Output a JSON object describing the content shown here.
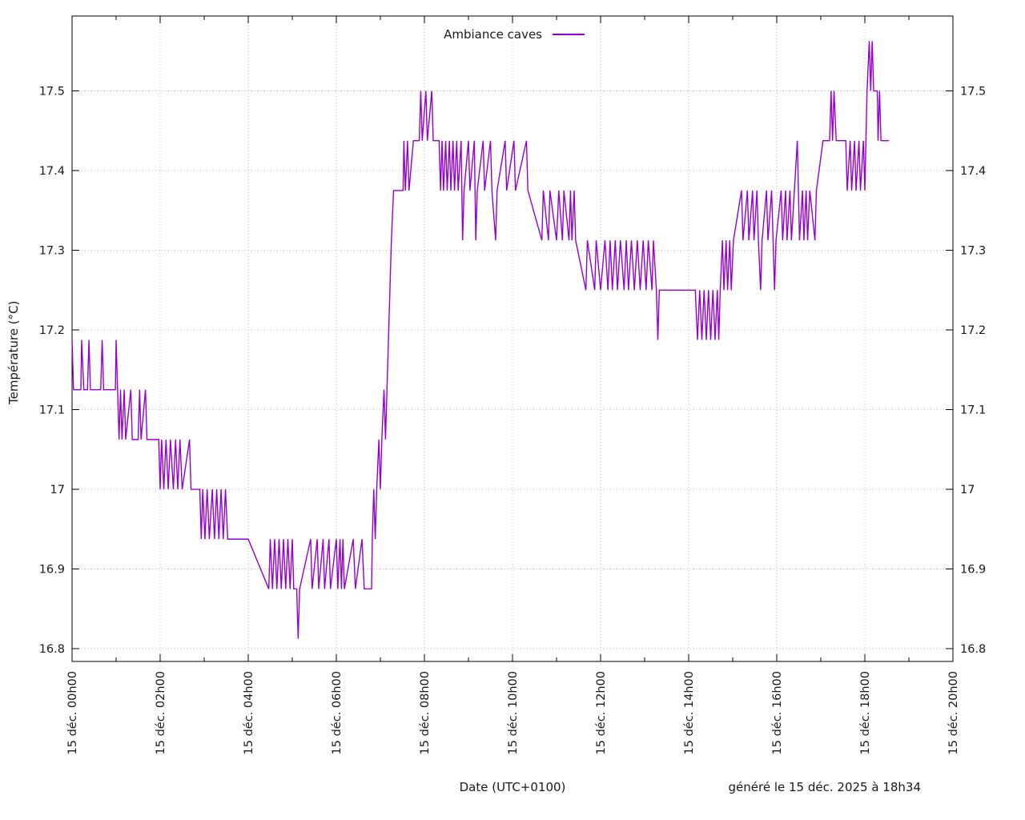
{
  "chart_data": {
    "type": "line",
    "title": "",
    "xlabel": "Date (UTC+0100)",
    "ylabel": "Température (°C)",
    "footer_note": "généré le 15 déc. 2025 à 18h34",
    "legend_position": "top-center",
    "grid": "dotted",
    "background_color": "#ffffff",
    "border_color": "#000000",
    "grid_color": "#b8b8b8",
    "x_range_hours": [
      0,
      20
    ],
    "y_range": [
      16.784,
      17.594
    ],
    "x_major_ticks": [
      {
        "hour": 0,
        "label": "15 déc. 00h00"
      },
      {
        "hour": 2,
        "label": "15 déc. 02h00"
      },
      {
        "hour": 4,
        "label": "15 déc. 04h00"
      },
      {
        "hour": 6,
        "label": "15 déc. 06h00"
      },
      {
        "hour": 8,
        "label": "15 déc. 08h00"
      },
      {
        "hour": 10,
        "label": "15 déc. 10h00"
      },
      {
        "hour": 12,
        "label": "15 déc. 12h00"
      },
      {
        "hour": 14,
        "label": "15 déc. 14h00"
      },
      {
        "hour": 16,
        "label": "15 déc. 16h00"
      },
      {
        "hour": 18,
        "label": "15 déc. 18h00"
      },
      {
        "hour": 20,
        "label": "15 déc. 20h00"
      }
    ],
    "x_minor_tick_every_hours": 1,
    "y_ticks": [
      {
        "value": 16.8,
        "label": "16.8"
      },
      {
        "value": 16.9,
        "label": "16.9"
      },
      {
        "value": 17.0,
        "label": "17"
      },
      {
        "value": 17.1,
        "label": "17.1"
      },
      {
        "value": 17.2,
        "label": "17.2"
      },
      {
        "value": 17.3,
        "label": "17.3"
      },
      {
        "value": 17.4,
        "label": "17.4"
      },
      {
        "value": 17.5,
        "label": "17.5"
      }
    ],
    "series": [
      {
        "name": "Ambiance caves",
        "color": "#9400d3",
        "points_minutes_celsius": [
          [
            0,
            17.1875
          ],
          [
            2,
            17.125
          ],
          [
            12,
            17.125
          ],
          [
            13,
            17.1875
          ],
          [
            16,
            17.125
          ],
          [
            21,
            17.125
          ],
          [
            23,
            17.1875
          ],
          [
            25,
            17.125
          ],
          [
            39,
            17.125
          ],
          [
            41,
            17.1875
          ],
          [
            43,
            17.125
          ],
          [
            59,
            17.125
          ],
          [
            60,
            17.1875
          ],
          [
            62,
            17.125
          ],
          [
            64,
            17.0625
          ],
          [
            66,
            17.125
          ],
          [
            68,
            17.0625
          ],
          [
            71,
            17.125
          ],
          [
            73,
            17.0625
          ],
          [
            80,
            17.125
          ],
          [
            82,
            17.0625
          ],
          [
            90,
            17.0625
          ],
          [
            92,
            17.125
          ],
          [
            94,
            17.0625
          ],
          [
            100,
            17.125
          ],
          [
            102,
            17.0625
          ],
          [
            118,
            17.0625
          ],
          [
            120,
            17.0
          ],
          [
            122,
            17.0625
          ],
          [
            125,
            17.0
          ],
          [
            128,
            17.0625
          ],
          [
            131,
            17.0
          ],
          [
            134,
            17.0625
          ],
          [
            138,
            17.0
          ],
          [
            141,
            17.0625
          ],
          [
            144,
            17.0
          ],
          [
            147,
            17.0625
          ],
          [
            150,
            17.0
          ],
          [
            160,
            17.0625
          ],
          [
            162,
            17.0
          ],
          [
            174,
            17.0
          ],
          [
            176,
            16.9375
          ],
          [
            178,
            17.0
          ],
          [
            181,
            16.9375
          ],
          [
            184,
            17.0
          ],
          [
            187,
            16.9375
          ],
          [
            191,
            17.0
          ],
          [
            194,
            16.9375
          ],
          [
            197,
            17.0
          ],
          [
            200,
            16.9375
          ],
          [
            203,
            17.0
          ],
          [
            206,
            16.9375
          ],
          [
            209,
            17.0
          ],
          [
            212,
            16.9375
          ],
          [
            234,
            16.9375
          ],
          [
            240,
            16.9375
          ],
          [
            268,
            16.875
          ],
          [
            270,
            16.9375
          ],
          [
            273,
            16.875
          ],
          [
            276,
            16.9375
          ],
          [
            279,
            16.875
          ],
          [
            282,
            16.9375
          ],
          [
            285,
            16.875
          ],
          [
            288,
            16.9375
          ],
          [
            291,
            16.875
          ],
          [
            294,
            16.9375
          ],
          [
            297,
            16.875
          ],
          [
            300,
            16.9375
          ],
          [
            302,
            16.875
          ],
          [
            306,
            16.875
          ],
          [
            308,
            16.8125
          ],
          [
            310,
            16.875
          ],
          [
            325,
            16.9375
          ],
          [
            327,
            16.875
          ],
          [
            334,
            16.9375
          ],
          [
            336,
            16.875
          ],
          [
            342,
            16.9375
          ],
          [
            344,
            16.875
          ],
          [
            350,
            16.9375
          ],
          [
            352,
            16.875
          ],
          [
            360,
            16.9375
          ],
          [
            362,
            16.875
          ],
          [
            365,
            16.9375
          ],
          [
            367,
            16.875
          ],
          [
            369,
            16.9375
          ],
          [
            371,
            16.875
          ],
          [
            383,
            16.9375
          ],
          [
            386,
            16.875
          ],
          [
            395,
            16.9375
          ],
          [
            398,
            16.875
          ],
          [
            408,
            16.875
          ],
          [
            409,
            16.9375
          ],
          [
            411,
            17.0
          ],
          [
            413,
            16.9375
          ],
          [
            415,
            17.0
          ],
          [
            418,
            17.0625
          ],
          [
            420,
            17.0
          ],
          [
            422,
            17.0625
          ],
          [
            425,
            17.125
          ],
          [
            427,
            17.0625
          ],
          [
            429,
            17.125
          ],
          [
            431,
            17.1875
          ],
          [
            433,
            17.25
          ],
          [
            435,
            17.3125
          ],
          [
            438,
            17.375
          ],
          [
            451,
            17.375
          ],
          [
            452,
            17.4375
          ],
          [
            454,
            17.375
          ],
          [
            457,
            17.4375
          ],
          [
            459,
            17.375
          ],
          [
            465,
            17.4375
          ],
          [
            473,
            17.4375
          ],
          [
            475,
            17.5
          ],
          [
            477,
            17.4375
          ],
          [
            482,
            17.5
          ],
          [
            484,
            17.4375
          ],
          [
            490,
            17.5
          ],
          [
            492,
            17.4375
          ],
          [
            500,
            17.4375
          ],
          [
            502,
            17.375
          ],
          [
            504,
            17.4375
          ],
          [
            506,
            17.375
          ],
          [
            509,
            17.4375
          ],
          [
            511,
            17.375
          ],
          [
            514,
            17.4375
          ],
          [
            516,
            17.375
          ],
          [
            519,
            17.4375
          ],
          [
            521,
            17.375
          ],
          [
            524,
            17.4375
          ],
          [
            526,
            17.375
          ],
          [
            530,
            17.4375
          ],
          [
            532,
            17.3125
          ],
          [
            534,
            17.375
          ],
          [
            540,
            17.4375
          ],
          [
            542,
            17.375
          ],
          [
            548,
            17.4375
          ],
          [
            550,
            17.3125
          ],
          [
            552,
            17.375
          ],
          [
            560,
            17.4375
          ],
          [
            562,
            17.375
          ],
          [
            570,
            17.4375
          ],
          [
            572,
            17.375
          ],
          [
            577,
            17.3125
          ],
          [
            579,
            17.375
          ],
          [
            590,
            17.4375
          ],
          [
            592,
            17.375
          ],
          [
            602,
            17.4375
          ],
          [
            604,
            17.375
          ],
          [
            619,
            17.4375
          ],
          [
            621,
            17.375
          ],
          [
            640,
            17.3125
          ],
          [
            642,
            17.375
          ],
          [
            649,
            17.3125
          ],
          [
            651,
            17.375
          ],
          [
            660,
            17.3125
          ],
          [
            663,
            17.375
          ],
          [
            668,
            17.3125
          ],
          [
            670,
            17.375
          ],
          [
            677,
            17.3125
          ],
          [
            679,
            17.375
          ],
          [
            681,
            17.3125
          ],
          [
            684,
            17.375
          ],
          [
            686,
            17.3125
          ],
          [
            700,
            17.25
          ],
          [
            702,
            17.3125
          ],
          [
            712,
            17.25
          ],
          [
            714,
            17.3125
          ],
          [
            720,
            17.25
          ],
          [
            726,
            17.3125
          ],
          [
            730,
            17.25
          ],
          [
            733,
            17.3125
          ],
          [
            736,
            17.25
          ],
          [
            740,
            17.3125
          ],
          [
            743,
            17.25
          ],
          [
            747,
            17.3125
          ],
          [
            752,
            17.25
          ],
          [
            755,
            17.3125
          ],
          [
            758,
            17.25
          ],
          [
            762,
            17.3125
          ],
          [
            766,
            17.25
          ],
          [
            770,
            17.3125
          ],
          [
            774,
            17.25
          ],
          [
            778,
            17.3125
          ],
          [
            782,
            17.25
          ],
          [
            785,
            17.3125
          ],
          [
            790,
            17.25
          ],
          [
            792,
            17.3125
          ],
          [
            796,
            17.25
          ],
          [
            798,
            17.1875
          ],
          [
            800,
            17.25
          ],
          [
            849,
            17.25
          ],
          [
            852,
            17.1875
          ],
          [
            855,
            17.25
          ],
          [
            858,
            17.1875
          ],
          [
            861,
            17.25
          ],
          [
            864,
            17.1875
          ],
          [
            867,
            17.25
          ],
          [
            870,
            17.1875
          ],
          [
            873,
            17.25
          ],
          [
            876,
            17.1875
          ],
          [
            879,
            17.25
          ],
          [
            881,
            17.1875
          ],
          [
            883,
            17.25
          ],
          [
            886,
            17.3125
          ],
          [
            888,
            17.25
          ],
          [
            891,
            17.3125
          ],
          [
            893,
            17.25
          ],
          [
            896,
            17.3125
          ],
          [
            898,
            17.25
          ],
          [
            901,
            17.3125
          ],
          [
            912,
            17.375
          ],
          [
            914,
            17.3125
          ],
          [
            920,
            17.375
          ],
          [
            922,
            17.3125
          ],
          [
            927,
            17.375
          ],
          [
            929,
            17.3125
          ],
          [
            933,
            17.375
          ],
          [
            935,
            17.3125
          ],
          [
            938,
            17.25
          ],
          [
            940,
            17.3125
          ],
          [
            946,
            17.375
          ],
          [
            948,
            17.3125
          ],
          [
            953,
            17.375
          ],
          [
            955,
            17.3125
          ],
          [
            957,
            17.25
          ],
          [
            959,
            17.3125
          ],
          [
            966,
            17.375
          ],
          [
            968,
            17.3125
          ],
          [
            972,
            17.375
          ],
          [
            974,
            17.3125
          ],
          [
            978,
            17.375
          ],
          [
            980,
            17.3125
          ],
          [
            988,
            17.4375
          ],
          [
            991,
            17.3125
          ],
          [
            995,
            17.375
          ],
          [
            997,
            17.3125
          ],
          [
            1000,
            17.375
          ],
          [
            1002,
            17.3125
          ],
          [
            1005,
            17.375
          ],
          [
            1012,
            17.3125
          ],
          [
            1014,
            17.375
          ],
          [
            1023,
            17.4375
          ],
          [
            1032,
            17.4375
          ],
          [
            1034,
            17.5
          ],
          [
            1036,
            17.4375
          ],
          [
            1038,
            17.5
          ],
          [
            1041,
            17.4375
          ],
          [
            1054,
            17.4375
          ],
          [
            1056,
            17.375
          ],
          [
            1060,
            17.4375
          ],
          [
            1062,
            17.375
          ],
          [
            1066,
            17.4375
          ],
          [
            1068,
            17.375
          ],
          [
            1072,
            17.4375
          ],
          [
            1074,
            17.375
          ],
          [
            1078,
            17.4375
          ],
          [
            1080,
            17.375
          ],
          [
            1083,
            17.5
          ],
          [
            1086,
            17.5625
          ],
          [
            1088,
            17.5
          ],
          [
            1090,
            17.5625
          ],
          [
            1092,
            17.5
          ],
          [
            1097,
            17.5
          ],
          [
            1098,
            17.4375
          ],
          [
            1100,
            17.5
          ],
          [
            1102,
            17.4375
          ],
          [
            1113,
            17.4375
          ]
        ]
      }
    ]
  }
}
